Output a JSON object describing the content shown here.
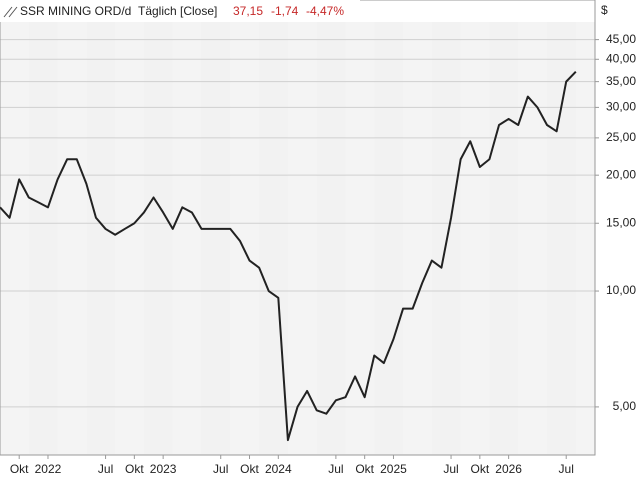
{
  "chart_data": {
    "type": "line",
    "title": "SSR MINING ORD/d",
    "subtitle": "Täglich [Close]",
    "last_price": "37,15",
    "change": "-1,74",
    "change_percent": "-4,47%",
    "currency": "$",
    "log_scale": true,
    "grid": true,
    "x": [
      "2021-08",
      "2021-09",
      "2021-10",
      "2021-11",
      "2021-12",
      "2022-01",
      "2022-02",
      "2022-03",
      "2022-04",
      "2022-05",
      "2022-06",
      "2022-07",
      "2022-08",
      "2022-09",
      "2022-10",
      "2022-11",
      "2022-12",
      "2023-01",
      "2023-02",
      "2023-03",
      "2023-04",
      "2023-05",
      "2023-06",
      "2023-07",
      "2023-08",
      "2023-09",
      "2023-10",
      "2023-11",
      "2023-12",
      "2024-01",
      "2024-02",
      "2024-03",
      "2024-04",
      "2024-05",
      "2024-06",
      "2024-07",
      "2024-08",
      "2024-09",
      "2024-10",
      "2024-11",
      "2024-12",
      "2025-01",
      "2025-02",
      "2025-03",
      "2025-04",
      "2025-05",
      "2025-06",
      "2025-07",
      "2025-08",
      "2025-09",
      "2025-10",
      "2025-11",
      "2025-12",
      "2026-01",
      "2026-02",
      "2026-03",
      "2026-04",
      "2026-05",
      "2026-06",
      "2026-07",
      "2026-08"
    ],
    "series": [
      {
        "name": "SSR MINING ORD",
        "color": "#222222",
        "values": [
          16.5,
          15.5,
          19.5,
          17.5,
          17,
          16.5,
          19.5,
          22,
          22,
          19,
          15.5,
          14.5,
          14,
          14.5,
          15,
          16,
          17.5,
          16,
          14.5,
          16.5,
          16,
          14.5,
          14.5,
          14.5,
          14.5,
          13.5,
          12,
          11.5,
          10,
          9.6,
          4.1,
          5,
          5.5,
          4.9,
          4.8,
          5.2,
          5.3,
          6,
          5.3,
          6.8,
          6.5,
          7.5,
          9,
          9,
          10.5,
          12,
          11.5,
          15.5,
          22,
          24.5,
          21,
          22,
          27,
          28,
          27,
          32,
          30,
          27,
          26,
          35,
          37.15
        ]
      }
    ],
    "xlim": [
      "2021-08",
      "2026-10"
    ],
    "xticks": [
      {
        "value": "2021-10",
        "label": "Okt"
      },
      {
        "value": "2022-01",
        "label": "2022"
      },
      {
        "value": "2022-07",
        "label": "Jul"
      },
      {
        "value": "2022-10",
        "label": "Okt"
      },
      {
        "value": "2023-01",
        "label": "2023"
      },
      {
        "value": "2023-07",
        "label": "Jul"
      },
      {
        "value": "2023-10",
        "label": "Okt"
      },
      {
        "value": "2024-01",
        "label": "2024"
      },
      {
        "value": "2024-07",
        "label": "Jul"
      },
      {
        "value": "2024-10",
        "label": "Okt"
      },
      {
        "value": "2025-01",
        "label": "2025"
      },
      {
        "value": "2025-07",
        "label": "Jul"
      },
      {
        "value": "2025-10",
        "label": "Okt"
      },
      {
        "value": "2026-01",
        "label": "2026"
      },
      {
        "value": "2026-07",
        "label": "Jul"
      }
    ],
    "ylim": [
      3.75,
      50
    ],
    "yticks": [
      {
        "value": 5,
        "label": "5,00"
      },
      {
        "value": 10,
        "label": "10,00"
      },
      {
        "value": 15,
        "label": "15,00"
      },
      {
        "value": 20,
        "label": "20,00"
      },
      {
        "value": 25,
        "label": "25,00"
      },
      {
        "value": 30,
        "label": "30,00"
      },
      {
        "value": 35,
        "label": "35,00"
      },
      {
        "value": 40,
        "label": "40,00"
      },
      {
        "value": 45,
        "label": "45,00"
      }
    ]
  }
}
